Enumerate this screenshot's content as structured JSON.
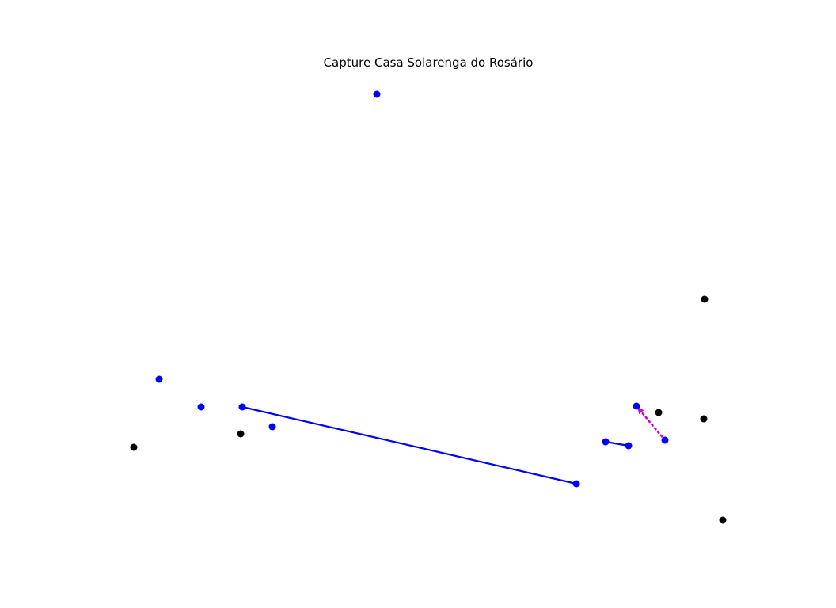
{
  "title": "Capture Casa Solarenga do Rosário",
  "colors": {
    "background": "#ffffff",
    "blue": "#0000ff",
    "black": "#000000",
    "magenta": "#cc00cc"
  },
  "diagram": {
    "blue_points": [
      {
        "id": "b1"
      },
      {
        "id": "b2"
      },
      {
        "id": "b3"
      },
      {
        "id": "b4"
      },
      {
        "id": "b5"
      },
      {
        "id": "b6"
      },
      {
        "id": "b7"
      },
      {
        "id": "b8"
      },
      {
        "id": "b9"
      },
      {
        "id": "b10"
      }
    ],
    "black_points": [
      {
        "id": "k1"
      },
      {
        "id": "k2"
      },
      {
        "id": "k3"
      },
      {
        "id": "k4"
      },
      {
        "id": "k5"
      },
      {
        "id": "k6"
      }
    ],
    "blue_lines": [
      {
        "from": "b4",
        "to": "b6"
      },
      {
        "from": "b7",
        "to": "b8"
      }
    ],
    "dotted_arrow": {
      "from": "b10",
      "to": "b9",
      "color": "magenta",
      "style": "dotted"
    }
  }
}
